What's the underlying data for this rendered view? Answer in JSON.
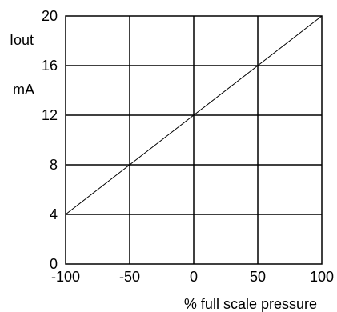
{
  "chart_data": {
    "type": "line",
    "title": "",
    "xlabel": "% full scale pressure",
    "ylabel_lines": [
      "Iout",
      "mA"
    ],
    "xlim": [
      -100,
      100
    ],
    "ylim": [
      0,
      20
    ],
    "x_ticks": [
      -100,
      -50,
      0,
      50,
      100
    ],
    "y_ticks": [
      0,
      4,
      8,
      12,
      16,
      20
    ],
    "x_tick_labels": [
      "-100",
      "-50",
      "0",
      "50",
      "100"
    ],
    "y_tick_labels": [
      "0",
      "4",
      "8",
      "12",
      "16",
      "20"
    ],
    "grid": true,
    "series": [
      {
        "x": [
          -100,
          100
        ],
        "y": [
          4,
          20
        ]
      }
    ],
    "colors": {
      "line": "#000000",
      "grid": "#000000",
      "background": "#ffffff"
    }
  }
}
